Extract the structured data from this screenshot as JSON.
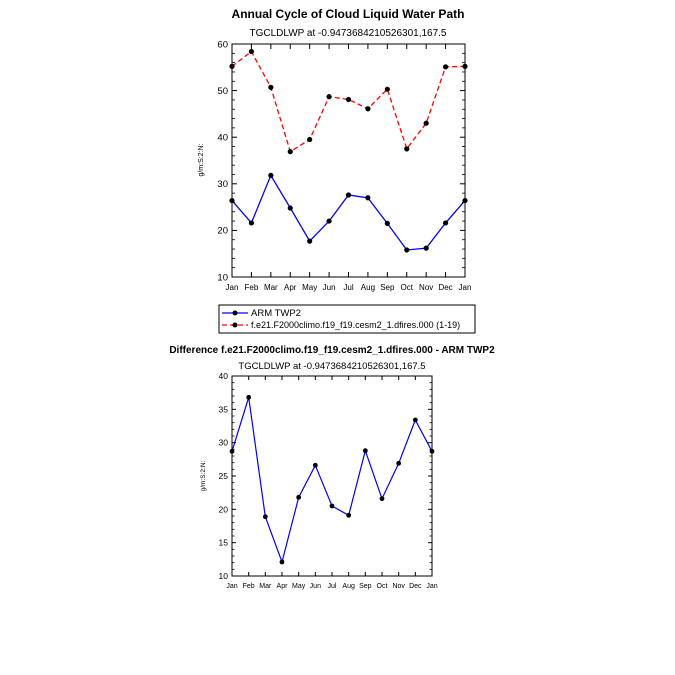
{
  "chart_data": [
    {
      "type": "line",
      "title": "Annual Cycle of Cloud Liquid Water Path",
      "subtitle": "TGCLDLWP at -0.9473684210526301,167.5",
      "xlabel": "",
      "ylabel": "g/m:S:2:N:",
      "categories": [
        "Jan",
        "Feb",
        "Mar",
        "Apr",
        "May",
        "Jun",
        "Jul",
        "Aug",
        "Sep",
        "Oct",
        "Nov",
        "Dec",
        "Jan"
      ],
      "ylim": [
        10,
        60
      ],
      "yticks": [
        10,
        20,
        30,
        40,
        50,
        60
      ],
      "grid": false,
      "legend_position": "bottom",
      "series": [
        {
          "name": "ARM TWP2",
          "color": "#0000ff",
          "dash": "solid",
          "values": [
            26.4,
            21.6,
            31.8,
            24.8,
            17.7,
            22.0,
            27.6,
            27.0,
            21.5,
            15.8,
            16.2,
            21.6,
            26.4
          ]
        },
        {
          "name": "f.e21.F2000climo.f19_f19.cesm2_1.dfires.000 (1-19)",
          "color": "#ff0000",
          "dash": "dashed",
          "values": [
            55.2,
            58.4,
            50.7,
            36.9,
            39.5,
            48.7,
            48.1,
            46.1,
            50.3,
            37.5,
            43.0,
            55.1,
            55.2
          ]
        }
      ]
    },
    {
      "type": "line",
      "title": "Difference f.e21.F2000climo.f19_f19.cesm2_1.dfires.000 - ARM TWP2",
      "subtitle": "TGCLDLWP at -0.9473684210526301,167.5",
      "xlabel": "",
      "ylabel": "g/m:S:2:N:",
      "categories": [
        "Jan",
        "Feb",
        "Mar",
        "Apr",
        "May",
        "Jun",
        "Jul",
        "Aug",
        "Sep",
        "Oct",
        "Nov",
        "Dec",
        "Jan"
      ],
      "ylim": [
        10,
        40
      ],
      "yticks": [
        10,
        15,
        20,
        25,
        30,
        35,
        40
      ],
      "grid": false,
      "series": [
        {
          "name": "Difference",
          "color": "#0000ff",
          "dash": "solid",
          "values": [
            28.7,
            36.8,
            18.9,
            12.1,
            21.8,
            26.6,
            20.5,
            19.1,
            28.8,
            21.6,
            26.9,
            33.4,
            28.7
          ]
        }
      ]
    }
  ]
}
